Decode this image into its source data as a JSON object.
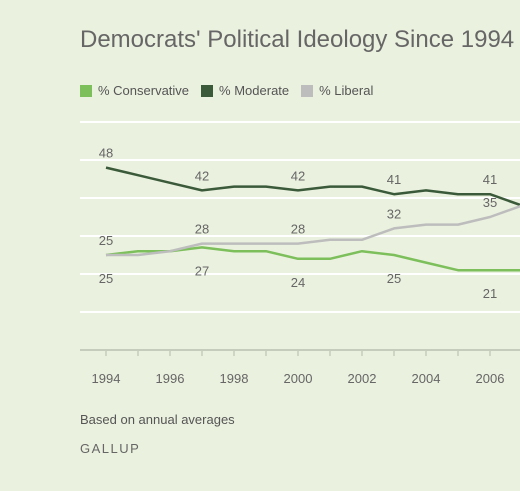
{
  "chart_data": {
    "type": "line",
    "title": "Democrats' Political Ideology Since 1994",
    "xlabel": "",
    "ylabel": "",
    "x": [
      1994,
      1995,
      1996,
      1997,
      1998,
      1999,
      2000,
      2001,
      2002,
      2003,
      2004,
      2005,
      2006,
      2007
    ],
    "x_ticks": [
      "1994",
      "1996",
      "1998",
      "2000",
      "2002",
      "2004",
      "2006"
    ],
    "ylim": [
      0,
      60
    ],
    "grid": true,
    "legend_position": "top-left",
    "series": [
      {
        "name": "% Conservative",
        "color": "#7cbf5b",
        "values": [
          25,
          26,
          26,
          27,
          26,
          26,
          24,
          24,
          26,
          25,
          23,
          21,
          21,
          21
        ],
        "labeled": [
          [
            1994,
            25
          ],
          [
            1997,
            27
          ],
          [
            2000,
            24
          ],
          [
            2003,
            25
          ],
          [
            2006,
            21
          ]
        ]
      },
      {
        "name": "% Moderate",
        "color": "#3b5a3a",
        "values": [
          48,
          46,
          44,
          42,
          43,
          43,
          42,
          43,
          43,
          41,
          42,
          41,
          41,
          38
        ],
        "labeled": [
          [
            1994,
            48
          ],
          [
            1997,
            42
          ],
          [
            2000,
            42
          ],
          [
            2003,
            41
          ],
          [
            2006,
            41
          ]
        ]
      },
      {
        "name": "% Liberal",
        "color": "#bdbdbd",
        "values": [
          25,
          25,
          26,
          28,
          28,
          28,
          28,
          29,
          29,
          32,
          33,
          33,
          35,
          38
        ],
        "labeled": [
          [
            1994,
            25
          ],
          [
            1997,
            28
          ],
          [
            2000,
            28
          ],
          [
            2003,
            32
          ],
          [
            2006,
            35
          ]
        ]
      }
    ]
  },
  "footnote": "Based on annual averages",
  "source": "GALLUP"
}
